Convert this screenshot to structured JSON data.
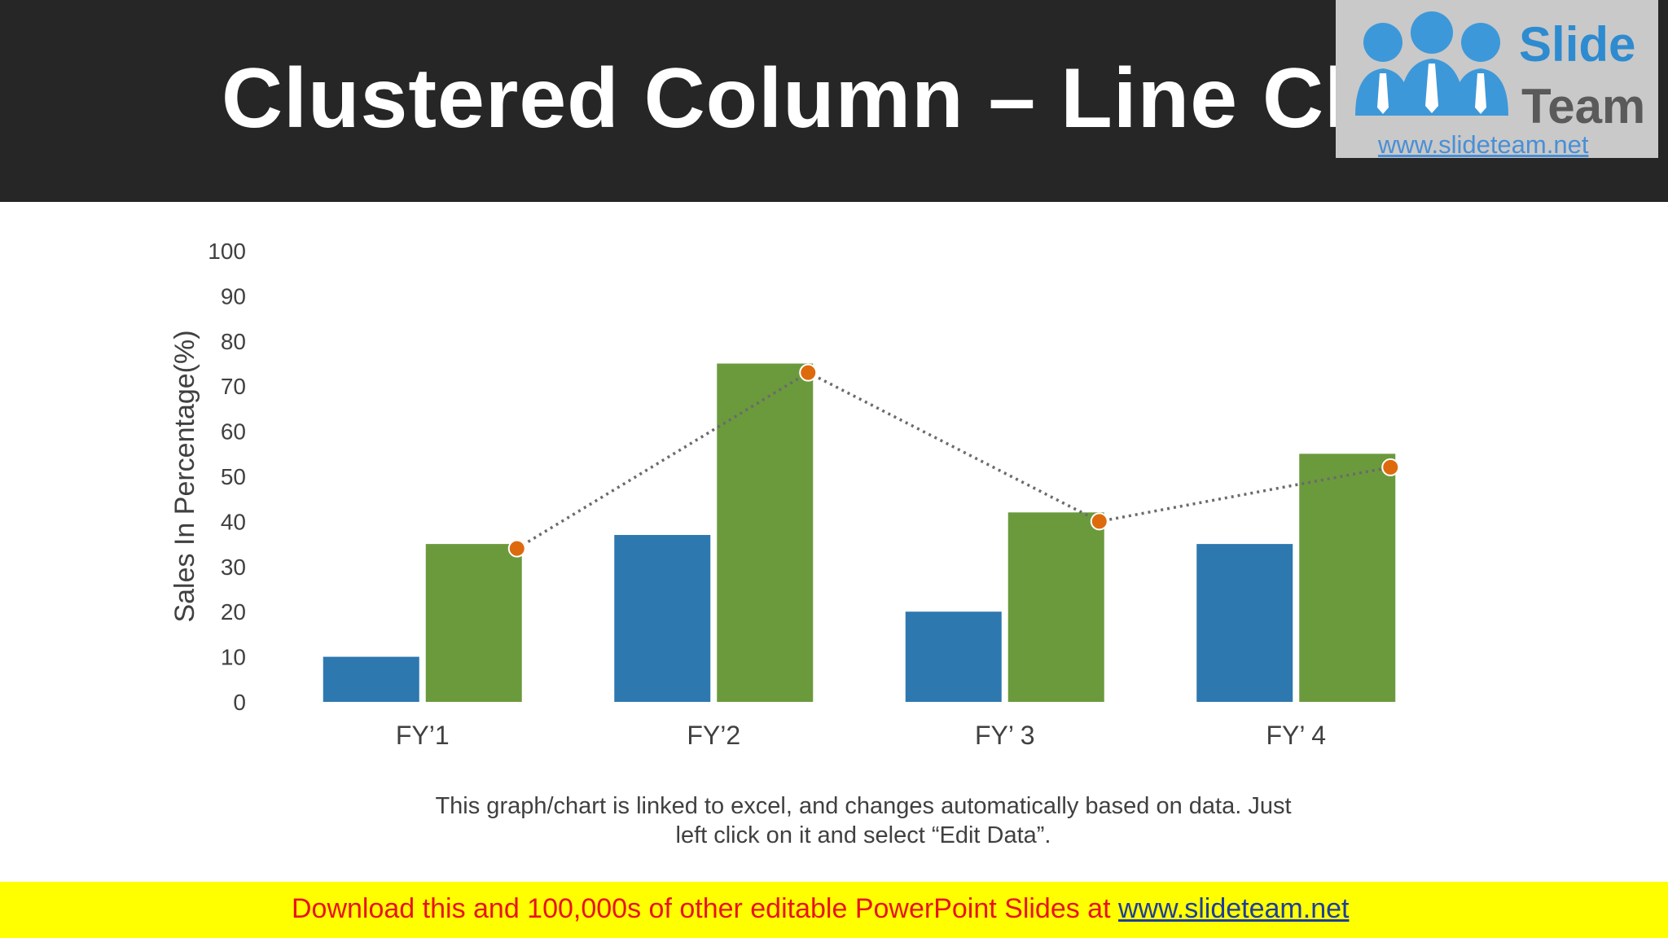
{
  "slide": {
    "title": "Clustered Column – Line Chart",
    "note_line1": "This graph/chart is linked to excel, and changes automatically based on data. Just",
    "note_line2": "left click on it and select “Edit Data”."
  },
  "logo": {
    "word1": "Slide",
    "word2": "Team",
    "url": "www.slideteam.net"
  },
  "footer": {
    "text": "Download this and 100,000s of other editable PowerPoint Slides at ",
    "link": "www.slideteam.net"
  },
  "colors": {
    "title_bar": "#262626",
    "series1": "#2e78b0",
    "series2": "#6b9a3d",
    "line": "#6b6b6b",
    "line_marker": "#de6a0e",
    "footer_bg": "#ffff00",
    "footer_text": "#e8141b",
    "footer_link": "#1f3e9a"
  },
  "chart_data": {
    "type": "bar",
    "categories": [
      "FY’1",
      "FY’2",
      "FY’ 3",
      "FY’ 4"
    ],
    "series": [
      {
        "kind": "bar",
        "values": [
          10,
          37,
          20,
          35
        ]
      },
      {
        "kind": "bar",
        "values": [
          35,
          75,
          42,
          55
        ]
      },
      {
        "kind": "line",
        "style": "dotted",
        "values": [
          34,
          73,
          40,
          52
        ]
      }
    ],
    "ylabel": "Sales In Percentage(%)",
    "ylim": [
      0,
      100
    ],
    "yticks": [
      0,
      10,
      20,
      30,
      40,
      50,
      60,
      70,
      80,
      90,
      100
    ],
    "grid": false,
    "legend": "none"
  }
}
